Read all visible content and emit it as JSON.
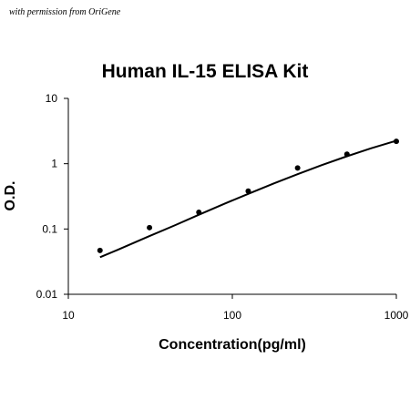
{
  "credit": "with permission from OriGene",
  "chart_data": {
    "type": "scatter",
    "title": "Human IL-15 ELISA Kit",
    "xlabel": "Concentration(pg/ml)",
    "ylabel": "O.D.",
    "xscale": "log",
    "yscale": "log",
    "xlim": [
      10,
      1000
    ],
    "ylim": [
      0.01,
      10
    ],
    "x_ticks": [
      "10",
      "100",
      "1000"
    ],
    "y_ticks": [
      "0.01",
      "0.1",
      "1",
      "10"
    ],
    "grid": false,
    "points": {
      "x": [
        15.6,
        31.25,
        62.5,
        125,
        250,
        500,
        1000
      ],
      "y": [
        0.047,
        0.105,
        0.18,
        0.38,
        0.86,
        1.4,
        2.2
      ]
    },
    "fit_curve": {
      "x": [
        15.6,
        20,
        31.25,
        45,
        62.5,
        90,
        125,
        180,
        250,
        350,
        500,
        700,
        1000
      ],
      "y": [
        0.037,
        0.048,
        0.078,
        0.115,
        0.165,
        0.245,
        0.345,
        0.5,
        0.69,
        0.95,
        1.3,
        1.72,
        2.25
      ]
    },
    "colors": {
      "points": "#000000",
      "curve": "#000000",
      "axes": "#000000"
    }
  }
}
